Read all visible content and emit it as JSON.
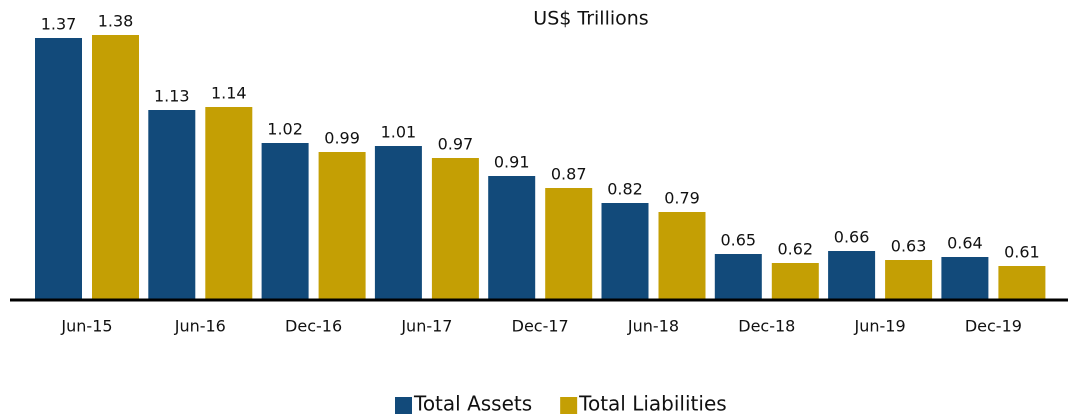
{
  "chart_data": {
    "type": "bar",
    "title": "US$ Trillions",
    "categories": [
      "Jun-15",
      "Jun-16",
      "Dec-16",
      "Jun-17",
      "Dec-17",
      "Jun-18",
      "Dec-18",
      "Jun-19",
      "Dec-19"
    ],
    "series": [
      {
        "name": "Total Assets",
        "color": "#124a7a",
        "values": [
          1.37,
          1.13,
          1.02,
          1.01,
          0.91,
          0.82,
          0.65,
          0.66,
          0.64
        ]
      },
      {
        "name": "Total Liabilities",
        "color": "#c49f04",
        "values": [
          1.38,
          1.14,
          0.99,
          0.97,
          0.87,
          0.79,
          0.62,
          0.63,
          0.61
        ]
      }
    ],
    "ylim": [
      0.5,
      1.4
    ],
    "legend": "bottom"
  }
}
